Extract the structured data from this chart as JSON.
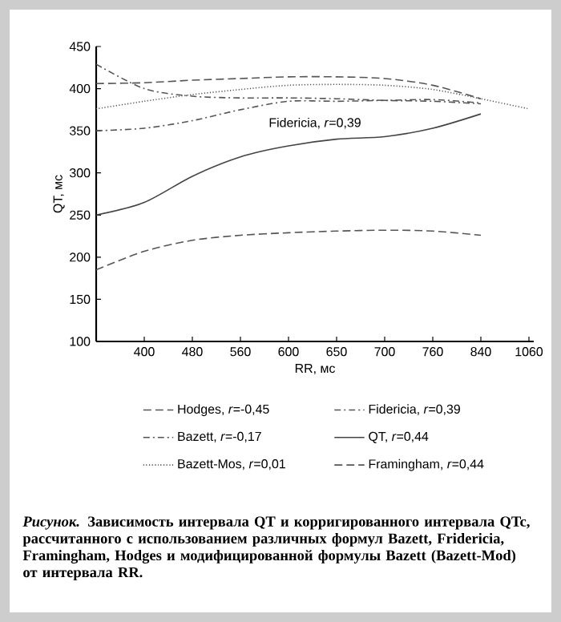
{
  "chart_data": {
    "type": "line",
    "xlabel": "RR, мс",
    "ylabel": "QT, мс",
    "categories": [
      null,
      "400",
      "480",
      "560",
      "600",
      "650",
      "700",
      "760",
      "840",
      "1060"
    ],
    "ylim": [
      100,
      450
    ],
    "yticks": [
      100,
      150,
      200,
      250,
      300,
      350,
      400,
      450
    ],
    "legend": "bottom",
    "series": [
      {
        "name": "Hodges, *r*=-0,45",
        "color": "#555555",
        "line_style": "dashed",
        "values": [
          406,
          407,
          410,
          412,
          414,
          414,
          412,
          404,
          388,
          null
        ]
      },
      {
        "name": "Fidericia, *r*=0,39",
        "color": "#555555",
        "line_style": "dashdot",
        "values": [
          350,
          353,
          362,
          375,
          385,
          385,
          386,
          387,
          383,
          null
        ]
      },
      {
        "name": "Bazett, *r*=-0,17",
        "color": "#555555",
        "line_style": "dashdot",
        "values": [
          429,
          400,
          391,
          389,
          389,
          388,
          386,
          385,
          382,
          null
        ]
      },
      {
        "name": "QT, *r*=0,44",
        "color": "#444444",
        "line_style": "solid",
        "values": [
          250,
          265,
          296,
          319,
          332,
          340,
          343,
          353,
          370,
          null
        ]
      },
      {
        "name": "Bazett-Mos, *r*=0,01",
        "color": "#555555",
        "line_style": "dotted",
        "values": [
          376,
          385,
          393,
          399,
          404,
          405,
          404,
          399,
          388,
          376
        ]
      },
      {
        "name": "Framingham, *r*=0,44",
        "color": "#555555",
        "line_style": "dashed",
        "values": [
          185,
          207,
          220,
          226,
          229,
          231,
          232,
          231,
          226,
          null
        ]
      }
    ],
    "annotations": [
      "Fidericia, *r*=0,39",
      "*Рисунок.* Зависимость интервала QT и корригированного интервала QTc, рассчитанного с использованием различных формул Bazett, Fridericia, Framingham, Hodges и модифицированной формулы Bazett (Bazett-Mod) от интервала RR."
    ]
  }
}
